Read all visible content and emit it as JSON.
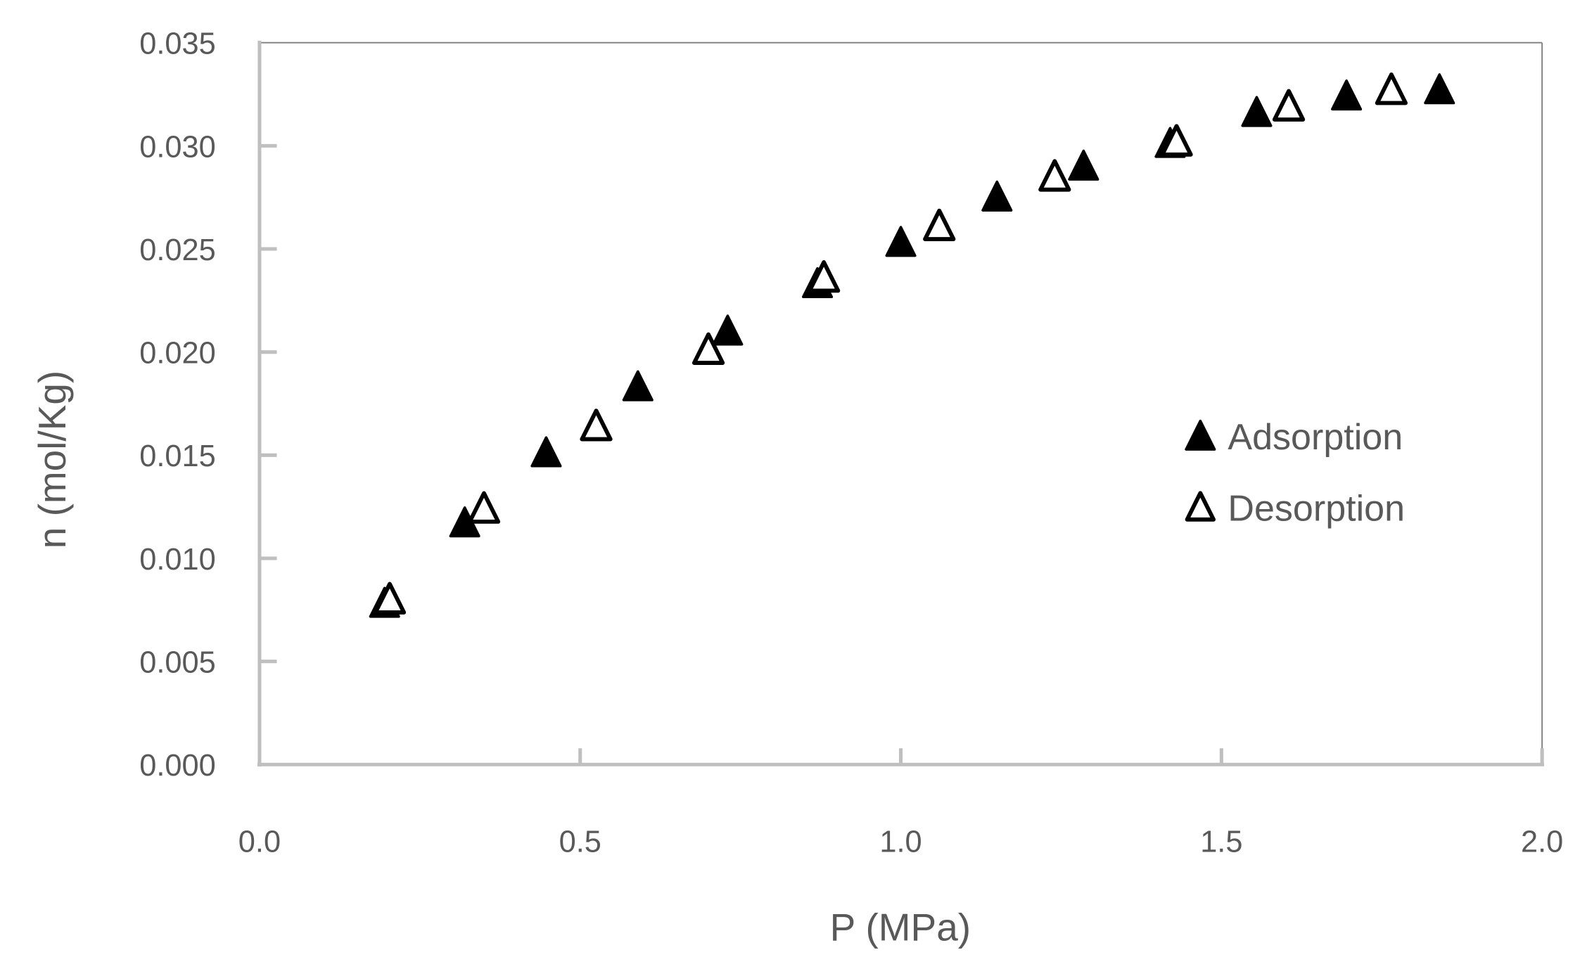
{
  "chart_data": {
    "type": "scatter",
    "title": "",
    "xlabel": "P (MPa)",
    "ylabel": "n (mol/Kg)",
    "xlim": [
      0.0,
      2.0
    ],
    "ylim": [
      0.0,
      0.035
    ],
    "x_ticks": [
      "0.0",
      "0.5",
      "1.0",
      "1.5",
      "2.0"
    ],
    "x_tick_values": [
      0.0,
      0.5,
      1.0,
      1.5,
      2.0
    ],
    "y_ticks": [
      "0.000",
      "0.005",
      "0.010",
      "0.015",
      "0.020",
      "0.025",
      "0.030",
      "0.035"
    ],
    "y_tick_values": [
      0.0,
      0.005,
      0.01,
      0.015,
      0.02,
      0.025,
      0.03,
      0.035
    ],
    "grid": false,
    "legend_position": "inside-right",
    "series": [
      {
        "name": "Adsorption",
        "marker": "filled-triangle",
        "color": "#000000",
        "x": [
          0.195,
          0.32,
          0.447,
          0.59,
          0.73,
          0.87,
          1.0,
          1.15,
          1.285,
          1.42,
          1.555,
          1.695,
          1.84
        ],
        "y": [
          0.0077,
          0.0116,
          0.015,
          0.0182,
          0.0209,
          0.0232,
          0.0252,
          0.0274,
          0.0289,
          0.03,
          0.0315,
          0.0323,
          0.0326
        ]
      },
      {
        "name": "Desorption",
        "marker": "open-triangle",
        "color": "#000000",
        "x": [
          0.203,
          0.35,
          0.525,
          0.7,
          0.88,
          1.06,
          1.24,
          1.43,
          1.605,
          1.765
        ],
        "y": [
          0.0079,
          0.0123,
          0.0163,
          0.02,
          0.0235,
          0.026,
          0.0284,
          0.0301,
          0.0318,
          0.0326
        ]
      }
    ]
  },
  "axes": {
    "x_title": "P (MPa)",
    "y_title": "n (mol/Kg)",
    "axis_color": "#bfbfbf",
    "frame_color": "#7f7f7f",
    "label_color": "#595959"
  },
  "legend": {
    "items": [
      {
        "label": "Adsorption",
        "marker": "filled-triangle"
      },
      {
        "label": "Desorption",
        "marker": "open-triangle"
      }
    ]
  }
}
